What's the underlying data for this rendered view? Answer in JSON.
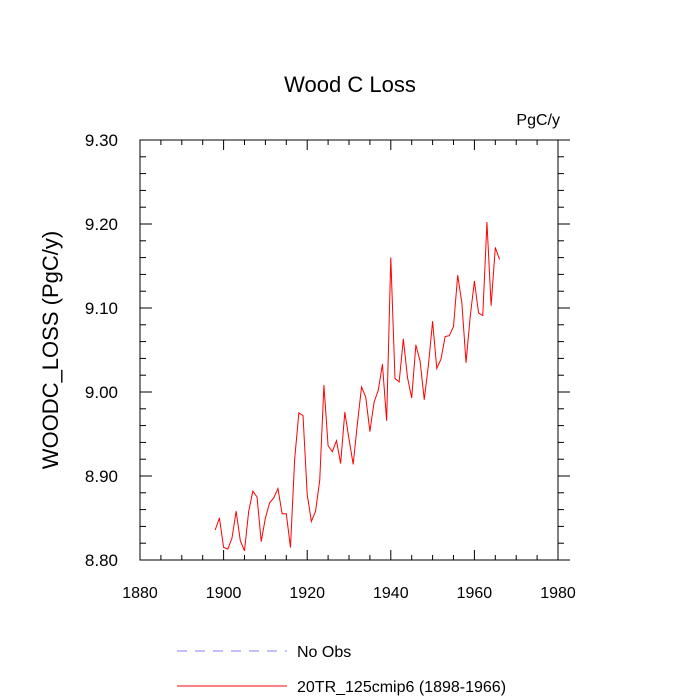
{
  "chart_data": {
    "type": "line",
    "title": "Wood C Loss",
    "units": "PgC/y",
    "xlabel": "",
    "ylabel": "WOODC_LOSS  (PgC/y)",
    "xlim": [
      1880,
      1980
    ],
    "ylim": [
      8.8,
      9.3
    ],
    "xticks": [
      "1880",
      "1900",
      "1920",
      "1940",
      "1960",
      "1980"
    ],
    "yticks": [
      "8.80",
      "8.90",
      "9.00",
      "9.10",
      "9.20",
      "9.30"
    ],
    "legend_position": "bottom",
    "series": [
      {
        "name": "No Obs",
        "color": "#8080ff",
        "style": "dashed",
        "x": [],
        "values": []
      },
      {
        "name": "20TR_125cmip6 (1898-1966)",
        "color": "#ff0000",
        "style": "solid",
        "x": [
          1898,
          1899,
          1900,
          1901,
          1902,
          1903,
          1904,
          1905,
          1906,
          1907,
          1908,
          1909,
          1910,
          1911,
          1912,
          1913,
          1914,
          1915,
          1916,
          1917,
          1918,
          1919,
          1920,
          1921,
          1922,
          1923,
          1924,
          1925,
          1926,
          1927,
          1928,
          1929,
          1930,
          1931,
          1932,
          1933,
          1934,
          1935,
          1936,
          1937,
          1938,
          1939,
          1940,
          1941,
          1942,
          1943,
          1944,
          1945,
          1946,
          1947,
          1948,
          1949,
          1950,
          1951,
          1952,
          1953,
          1954,
          1955,
          1956,
          1957,
          1958,
          1959,
          1960,
          1961,
          1962,
          1963,
          1964,
          1965,
          1966
        ],
        "values": [
          8.836,
          8.85,
          8.815,
          8.813,
          8.826,
          8.858,
          8.823,
          8.811,
          8.858,
          8.882,
          8.875,
          8.822,
          8.85,
          8.868,
          8.874,
          8.885,
          8.855,
          8.855,
          8.815,
          8.92,
          8.975,
          8.972,
          8.878,
          8.846,
          8.858,
          8.895,
          9.008,
          8.936,
          8.929,
          8.942,
          8.915,
          8.976,
          8.944,
          8.914,
          8.962,
          9.006,
          8.994,
          8.953,
          8.988,
          9.002,
          9.033,
          8.966,
          9.16,
          9.016,
          9.012,
          9.063,
          9.017,
          8.993,
          9.056,
          9.037,
          8.991,
          9.032,
          9.084,
          9.028,
          9.039,
          9.066,
          9.067,
          9.078,
          9.139,
          9.106,
          9.035,
          9.09,
          9.132,
          9.094,
          9.091,
          9.202,
          9.103,
          9.172,
          9.158
        ]
      }
    ]
  }
}
